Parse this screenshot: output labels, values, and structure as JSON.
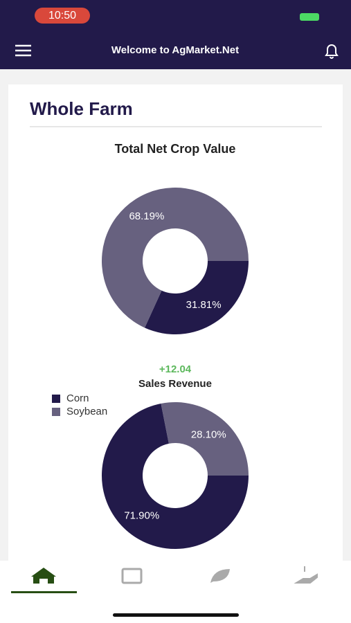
{
  "status_bar": {
    "time": "10:50"
  },
  "header": {
    "title": "Welcome to AgMarket.Net"
  },
  "section": {
    "title": "Whole Farm"
  },
  "chart_data": [
    {
      "type": "pie",
      "title": "Total Net Crop Value",
      "values": [
        31.81,
        68.19
      ],
      "value_labels": [
        "31.81%",
        "68.19%"
      ],
      "colors": [
        "#221a4a",
        "#67617f"
      ]
    },
    {
      "type": "pie",
      "title": "Sales Revenue",
      "annotation": "+12.04",
      "categories": [
        "Corn",
        "Soybean"
      ],
      "values": [
        71.9,
        28.1
      ],
      "value_labels": [
        "71.90%",
        "28.10%"
      ],
      "colors": [
        "#221a4a",
        "#67617f"
      ],
      "legend": "top-left"
    }
  ]
}
